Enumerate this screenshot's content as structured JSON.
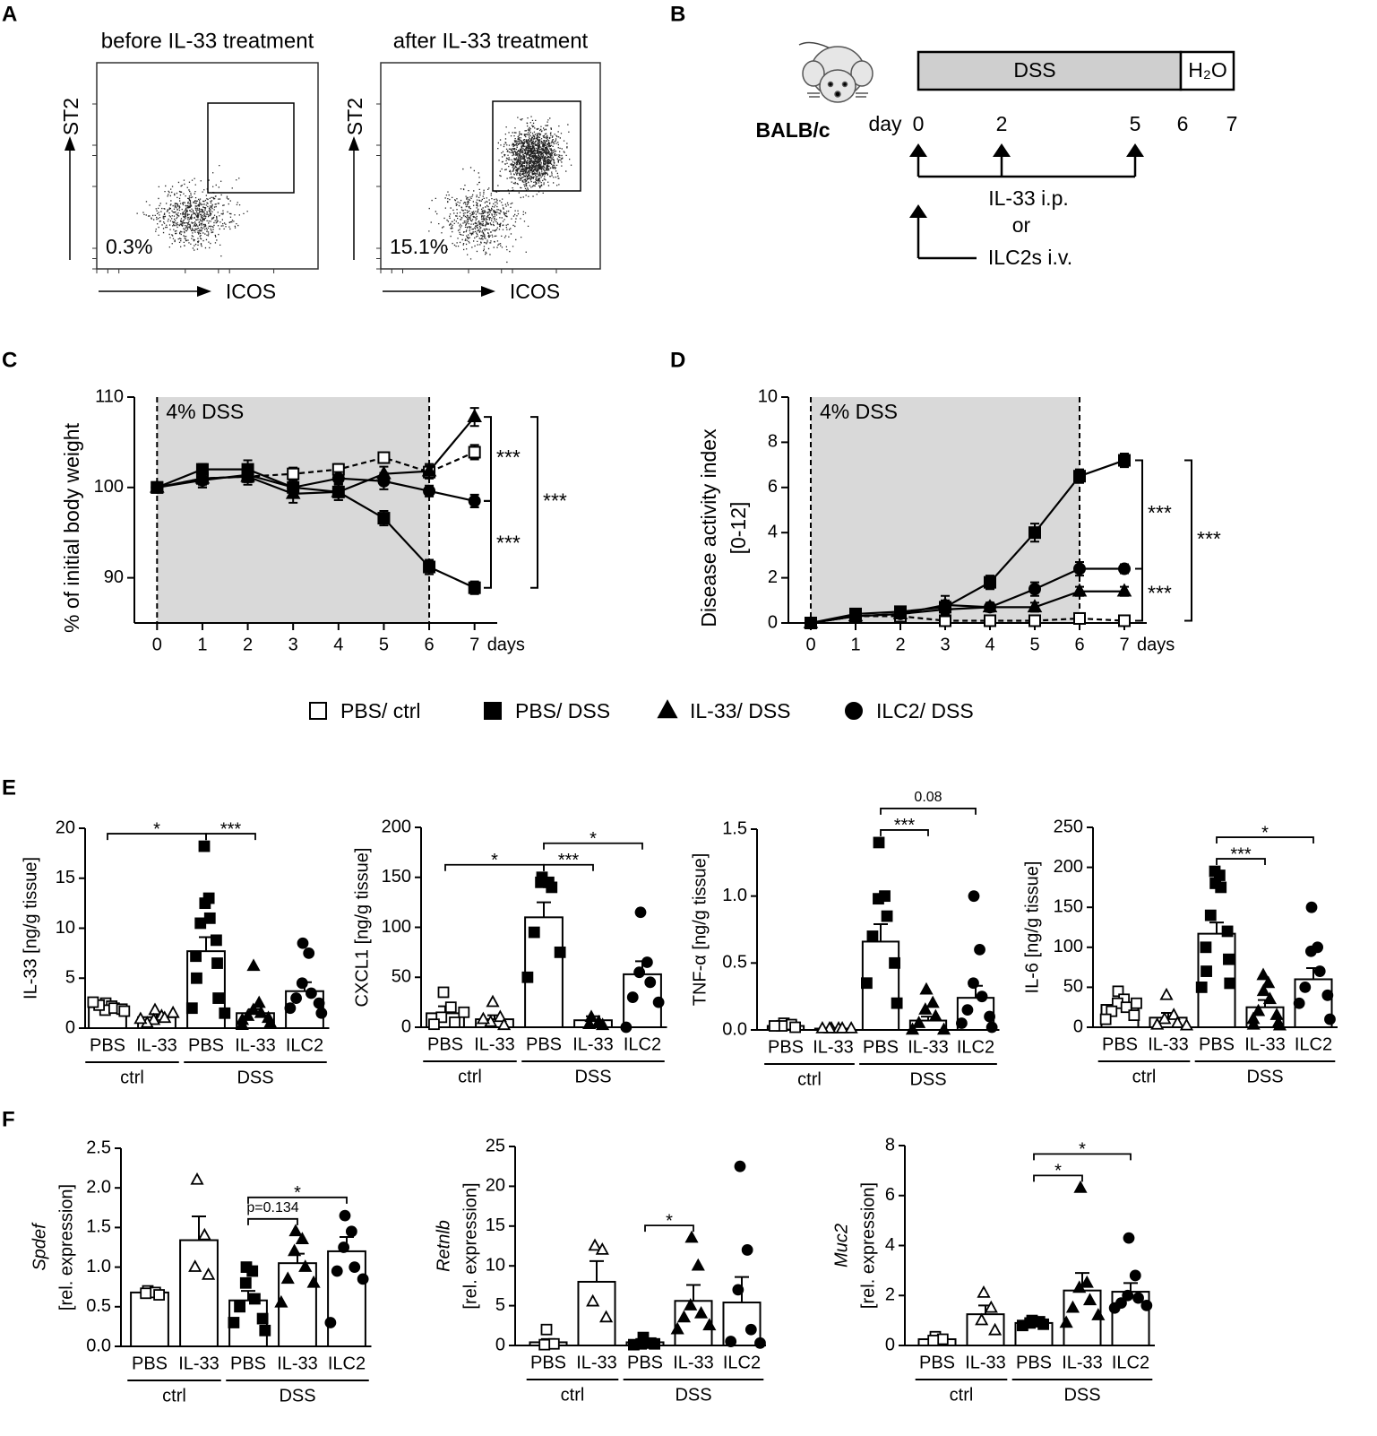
{
  "panel_labels": [
    "A",
    "B",
    "C",
    "D",
    "E",
    "F"
  ],
  "flow": {
    "plots": [
      {
        "title": "before IL-33 treatment",
        "ylabel": "ST2",
        "xlabel": "ICOS",
        "gate_percent": "0.3%"
      },
      {
        "title": "after IL-33 treatment",
        "ylabel": "ST2",
        "xlabel": "ICOS",
        "gate_percent": "15.1%"
      }
    ]
  },
  "schedule": {
    "strain": "BALB/c",
    "day_label": "day",
    "days": [
      "0",
      "2",
      "5",
      "6",
      "7"
    ],
    "phase1": "DSS",
    "phase2": "H₂O",
    "treatment1": "IL-33 i.p.",
    "or": "or",
    "treatment2": "ILC2s i.v."
  },
  "chart_data": [
    {
      "type": "line",
      "ylabel": "% of initial body weight",
      "xlabel": "days",
      "shade_label": "4% DSS",
      "shade": [
        0,
        6
      ],
      "x": [
        0,
        1,
        2,
        3,
        4,
        5,
        6,
        7
      ],
      "xlim": [
        -0.5,
        7.5
      ],
      "xticks": [
        0,
        1,
        2,
        3,
        4,
        5,
        6,
        7
      ],
      "ylim": [
        85,
        110
      ],
      "yticks": [
        90,
        100,
        110
      ],
      "series": [
        {
          "name": "PBS/ ctrl",
          "color": "#000000",
          "marker": "square",
          "filled": false,
          "dashed": true,
          "values": [
            100,
            101,
            101.2,
            101.5,
            102,
            103.3,
            101.7,
            103.9
          ],
          "errors": [
            0.3,
            0.7,
            0.6,
            0.7,
            0.6,
            0.5,
            0.7,
            0.8
          ]
        },
        {
          "name": "PBS/ DSS",
          "color": "#000000",
          "marker": "square",
          "filled": true,
          "dashed": false,
          "values": [
            100,
            102,
            102,
            100,
            99.5,
            96.6,
            91.2,
            88.9
          ],
          "errors": [
            0.3,
            0.6,
            1.0,
            0.8,
            0.9,
            0.8,
            0.8,
            0.7
          ]
        },
        {
          "name": "IL-33/ DSS",
          "color": "#000000",
          "marker": "triangle",
          "filled": true,
          "dashed": false,
          "values": [
            100,
            101,
            101.2,
            99.3,
            99.5,
            101.5,
            101.8,
            107.8
          ],
          "errors": [
            0.3,
            1.0,
            0.9,
            1.0,
            0.9,
            0.8,
            0.8,
            1.0
          ]
        },
        {
          "name": "ILC2/ DSS",
          "color": "#000000",
          "marker": "circle",
          "filled": true,
          "dashed": false,
          "values": [
            100,
            100.8,
            101.4,
            100,
            101,
            100.7,
            99.6,
            98.5
          ],
          "errors": [
            0.3,
            0.8,
            0.8,
            0.8,
            0.7,
            0.9,
            0.6,
            0.7
          ]
        }
      ],
      "annotations": [
        {
          "text": "***",
          "between": [
            2,
            3
          ]
        },
        {
          "text": "***",
          "between": [
            3,
            1
          ]
        },
        {
          "text": "***",
          "between": [
            2,
            1
          ]
        }
      ]
    },
    {
      "type": "line",
      "ylabel": "Disease activity index",
      "ylabel_unit": "[0-12]",
      "xlabel": "days",
      "shade_label": "4% DSS",
      "shade": [
        0,
        6
      ],
      "x": [
        0,
        1,
        2,
        3,
        4,
        5,
        6,
        7
      ],
      "xlim": [
        -0.5,
        7.5
      ],
      "xticks": [
        0,
        1,
        2,
        3,
        4,
        5,
        6,
        7
      ],
      "ylim": [
        0,
        10
      ],
      "yticks": [
        0,
        2,
        4,
        6,
        8,
        10
      ],
      "series": [
        {
          "name": "PBS/ ctrl",
          "color": "#000000",
          "marker": "square",
          "filled": false,
          "dashed": true,
          "values": [
            0,
            0.3,
            0.3,
            0.1,
            0.1,
            0.1,
            0.2,
            0.1
          ],
          "errors": [
            0,
            0.1,
            0.1,
            0.1,
            0.1,
            0.1,
            0.1,
            0.1
          ]
        },
        {
          "name": "PBS/ DSS",
          "color": "#000000",
          "marker": "square",
          "filled": true,
          "dashed": false,
          "values": [
            0,
            0.4,
            0.5,
            0.7,
            1.8,
            4.0,
            6.5,
            7.2
          ],
          "errors": [
            0,
            0.2,
            0.2,
            0.3,
            0.3,
            0.4,
            0.3,
            0.3
          ]
        },
        {
          "name": "IL-33/ DSS",
          "color": "#000000",
          "marker": "triangle",
          "filled": true,
          "dashed": false,
          "values": [
            0,
            0.3,
            0.4,
            0.8,
            0.7,
            0.7,
            1.4,
            1.4
          ],
          "errors": [
            0,
            0.1,
            0.2,
            0.4,
            0.2,
            0.2,
            0.2,
            0.2
          ]
        },
        {
          "name": "ILC2/ DSS",
          "color": "#000000",
          "marker": "circle",
          "filled": true,
          "dashed": false,
          "values": [
            0,
            0.3,
            0.4,
            0.6,
            0.7,
            1.5,
            2.4,
            2.4
          ],
          "errors": [
            0,
            0.1,
            0.2,
            0.3,
            0.2,
            0.3,
            0.3,
            0.2
          ]
        }
      ],
      "annotations": [
        {
          "text": "***",
          "between": [
            1,
            3
          ]
        },
        {
          "text": "***",
          "between": [
            3,
            0
          ]
        },
        {
          "text": "***",
          "between": [
            1,
            0
          ]
        }
      ]
    },
    {
      "type": "bar",
      "ylabel": "IL-33 [ng/g tissue]",
      "categories": [
        "PBS",
        "IL-33",
        "PBS",
        "IL-33",
        "ILC2"
      ],
      "groups": [
        "ctrl",
        "DSS"
      ],
      "markers": [
        "square",
        "triangle",
        "square",
        "triangle",
        "circle"
      ],
      "filled": [
        false,
        false,
        true,
        true,
        true
      ],
      "color": "#000000",
      "ylim": [
        0,
        20
      ],
      "yticks": [
        0,
        5,
        10,
        15,
        20
      ],
      "values": [
        2.1,
        1.1,
        7.7,
        1.5,
        3.7
      ],
      "errors": [
        0.3,
        0.3,
        1.4,
        0.4,
        0.9
      ],
      "points": [
        [
          2.5,
          2.2,
          1.8,
          2.0,
          2.3,
          1.9,
          2.6,
          1.7
        ],
        [
          1.8,
          1.2,
          0.8,
          1.0,
          0.5,
          1.5,
          0.9
        ],
        [
          18.2,
          13.0,
          12.5,
          11.0,
          10.5,
          8.8,
          7.2,
          6.5,
          5.0,
          3.0,
          2.0,
          1.5
        ],
        [
          6.2,
          2.5,
          1.8,
          1.5,
          1.2,
          1.0,
          0.8,
          0.5,
          0.3
        ],
        [
          8.5,
          7.5,
          4.5,
          3.5,
          3.0,
          2.5,
          2.0,
          1.5
        ]
      ],
      "annotations": [
        {
          "text": "*",
          "from": 0,
          "to": 2
        },
        {
          "text": "***",
          "from": 2,
          "to": 3
        }
      ]
    },
    {
      "type": "bar",
      "ylabel": "CXCL1 [ng/g tissue]",
      "categories": [
        "PBS",
        "IL-33",
        "PBS",
        "IL-33",
        "ILC2"
      ],
      "groups": [
        "ctrl",
        "DSS"
      ],
      "markers": [
        "square",
        "triangle",
        "square",
        "triangle",
        "circle"
      ],
      "filled": [
        false,
        false,
        true,
        true,
        true
      ],
      "color": "#000000",
      "ylim": [
        0,
        200
      ],
      "yticks": [
        0,
        50,
        100,
        150,
        200
      ],
      "values": [
        14,
        8,
        110,
        7,
        53
      ],
      "errors": [
        7,
        4,
        15,
        4,
        13
      ],
      "points": [
        [
          35,
          20,
          10,
          5,
          3,
          15
        ],
        [
          25,
          10,
          5,
          2,
          8
        ],
        [
          150,
          145,
          145,
          140,
          95,
          75,
          50
        ],
        [
          10,
          5,
          3,
          2
        ],
        [
          115,
          65,
          55,
          45,
          30,
          25,
          0
        ]
      ],
      "annotations": [
        {
          "text": "*",
          "from": 0,
          "to": 2
        },
        {
          "text": "***",
          "from": 2,
          "to": 3
        },
        {
          "text": "*",
          "from": 2,
          "to": 4
        }
      ]
    },
    {
      "type": "bar",
      "ylabel": "TNF-α [ng/g tissue]",
      "categories": [
        "PBS",
        "IL-33",
        "PBS",
        "IL-33",
        "ILC2"
      ],
      "groups": [
        "ctrl",
        "DSS"
      ],
      "markers": [
        "square",
        "triangle",
        "square",
        "triangle",
        "circle"
      ],
      "filled": [
        false,
        false,
        true,
        true,
        true
      ],
      "color": "#000000",
      "ylim": [
        0,
        1.5
      ],
      "yticks": [
        {
          "value": 0,
          "label": "0.0"
        },
        0.5,
        {
          "value": 1,
          "label": "1.0"
        },
        1.5
      ],
      "values": [
        0.03,
        0.01,
        0.66,
        0.07,
        0.24
      ],
      "errors": [
        0.01,
        0.005,
        0.13,
        0.03,
        0.09
      ],
      "points": [
        [
          0.05,
          0.04,
          0.03,
          0.02,
          0.03
        ],
        [
          0.01,
          0.01,
          0.01,
          0.01,
          0.01,
          0.01
        ],
        [
          1.4,
          1.0,
          0.98,
          0.85,
          0.7,
          0.5,
          0.35,
          0.2
        ],
        [
          0.3,
          0.2,
          0.15,
          0.1,
          0.05,
          0.0,
          0.0
        ],
        [
          1.0,
          0.6,
          0.35,
          0.25,
          0.15,
          0.1,
          0.05,
          0.02
        ]
      ],
      "annotations": [
        {
          "text": "***",
          "from": 2,
          "to": 3
        },
        {
          "text": "0.08",
          "from": 2,
          "to": 4
        }
      ]
    },
    {
      "type": "bar",
      "ylabel": "IL-6 [ng/g tissue]",
      "categories": [
        "PBS",
        "IL-33",
        "PBS",
        "IL-33",
        "ILC2"
      ],
      "groups": [
        "ctrl",
        "DSS"
      ],
      "markers": [
        "square",
        "triangle",
        "square",
        "triangle",
        "circle"
      ],
      "filled": [
        false,
        false,
        true,
        true,
        true
      ],
      "color": "#000000",
      "ylim": [
        0,
        250
      ],
      "yticks": [
        0,
        50,
        100,
        150,
        200,
        250
      ],
      "values": [
        28,
        12,
        117,
        25,
        60
      ],
      "errors": [
        6,
        6,
        14,
        9,
        14
      ],
      "points": [
        [
          45,
          35,
          30,
          25,
          20,
          15,
          10,
          30
        ],
        [
          40,
          15,
          10,
          5,
          3,
          2
        ],
        [
          195,
          190,
          180,
          175,
          140,
          120,
          100,
          85,
          70,
          55,
          50
        ],
        [
          65,
          55,
          45,
          35,
          20,
          15,
          10,
          5,
          3,
          2
        ],
        [
          150,
          100,
          95,
          70,
          50,
          40,
          30,
          10
        ]
      ],
      "annotations": [
        {
          "text": "***",
          "from": 2,
          "to": 3
        },
        {
          "text": "*",
          "from": 2,
          "to": 4
        }
      ]
    },
    {
      "type": "bar",
      "ylabel": "Spdef",
      "ylabel_unit": "[rel. expression]",
      "categories": [
        "PBS",
        "IL-33",
        "PBS",
        "IL-33",
        "ILC2"
      ],
      "groups": [
        "ctrl",
        "DSS"
      ],
      "markers": [
        "square",
        "triangle",
        "square",
        "triangle",
        "circle"
      ],
      "filled": [
        false,
        false,
        true,
        true,
        true
      ],
      "color": "#000000",
      "ylim": [
        0,
        2.5
      ],
      "yticks": [
        {
          "value": 0,
          "label": "0.0"
        },
        0.5,
        {
          "value": 1,
          "label": "1.0"
        },
        1.5,
        {
          "value": 2,
          "label": "2.0"
        },
        2.5
      ],
      "values": [
        0.68,
        1.34,
        0.58,
        1.05,
        1.2
      ],
      "errors": [
        0.04,
        0.3,
        0.12,
        0.12,
        0.18
      ],
      "points": [
        [
          0.7,
          0.68,
          0.67,
          0.65
        ],
        [
          2.1,
          1.4,
          1.0,
          0.9
        ],
        [
          1.0,
          0.95,
          0.8,
          0.6,
          0.5,
          0.35,
          0.3,
          0.2
        ],
        [
          1.45,
          1.35,
          1.2,
          1.0,
          0.85,
          0.8,
          0.55
        ],
        [
          1.65,
          1.45,
          1.25,
          1.0,
          0.95,
          0.85,
          0.3
        ]
      ],
      "annotations": [
        {
          "text": "p=0.134",
          "from": 2,
          "to": 3
        },
        {
          "text": "*",
          "from": 2,
          "to": 4
        }
      ]
    },
    {
      "type": "bar",
      "ylabel": "Retnlb",
      "ylabel_unit": "[rel. expression]",
      "categories": [
        "PBS",
        "IL-33",
        "PBS",
        "IL-33",
        "ILC2"
      ],
      "groups": [
        "ctrl",
        "DSS"
      ],
      "markers": [
        "square",
        "triangle",
        "square",
        "triangle",
        "circle"
      ],
      "filled": [
        false,
        false,
        true,
        true,
        true
      ],
      "color": "#000000",
      "ylim": [
        0,
        25
      ],
      "yticks": [
        0,
        5,
        10,
        15,
        20,
        25
      ],
      "values": [
        0.4,
        8,
        0.4,
        5.6,
        5.4
      ],
      "errors": [
        0.4,
        2.6,
        0.3,
        2.0,
        3.2
      ],
      "points": [
        [
          2,
          0.2,
          0.1
        ],
        [
          12.5,
          12,
          5.5,
          3.5
        ],
        [
          1,
          0.3,
          0.2,
          0.2,
          0.1
        ],
        [
          13.5,
          10,
          5,
          4,
          3.5,
          2.5,
          2
        ],
        [
          22.5,
          12,
          7,
          2,
          0.5,
          0.3
        ]
      ],
      "annotations": [
        {
          "text": "*",
          "from": 2,
          "to": 3
        }
      ]
    },
    {
      "type": "bar",
      "ylabel": "Muc2",
      "ylabel_unit": "[rel. expression]",
      "categories": [
        "PBS",
        "IL-33",
        "PBS",
        "IL-33",
        "ILC2"
      ],
      "groups": [
        "ctrl",
        "DSS"
      ],
      "markers": [
        "square",
        "triangle",
        "square",
        "triangle",
        "circle"
      ],
      "filled": [
        false,
        false,
        true,
        true,
        true
      ],
      "color": "#000000",
      "ylim": [
        0,
        8
      ],
      "yticks": [
        0,
        2,
        4,
        6,
        8
      ],
      "values": [
        0.25,
        1.25,
        0.9,
        2.2,
        2.15
      ],
      "errors": [
        0.1,
        0.35,
        0.1,
        0.7,
        0.35
      ],
      "points": [
        [
          0.35,
          0.25,
          0.2
        ],
        [
          2.1,
          1.5,
          1.0,
          0.6
        ],
        [
          1.0,
          0.95,
          0.9,
          0.85,
          0.8
        ],
        [
          6.3,
          2.5,
          2.3,
          1.8,
          1.5,
          1.2,
          0.9
        ],
        [
          4.3,
          2.8,
          2.0,
          1.9,
          1.7,
          1.6,
          1.5
        ]
      ],
      "annotations": [
        {
          "text": "*",
          "from": 2,
          "to": 3
        },
        {
          "text": "*",
          "from": 2,
          "to": 4
        }
      ]
    }
  ]
}
